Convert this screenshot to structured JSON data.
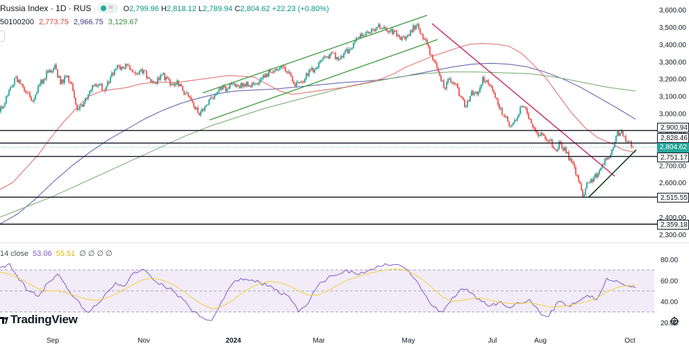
{
  "header": {
    "symbol": "Russia Index · 1D · RUS",
    "ohlc": {
      "open_label": "O",
      "open": "2,799.96",
      "high_label": "H",
      "high": "2,818.12",
      "low_label": "L",
      "low": "2,789.94",
      "close_label": "C",
      "close": "2,804.62",
      "change": "+22.23 (+0.80%)"
    },
    "ma_row": {
      "label": "50100200",
      "ma50": "2,773.75",
      "ma100": "2,966.75",
      "ma200": "3,129.67"
    }
  },
  "colors": {
    "up": "#26a69a",
    "down": "#ef5350",
    "ma50": "#e06666",
    "ma100": "#5b58a8",
    "ma200": "#6ea86a",
    "rsi": "#7e57c2",
    "rsi_ma": "#f4d03f",
    "channel_green": "#3d9a3d",
    "trend_red": "#c2185b",
    "ma50_text": "#d0463e",
    "ma100_text": "#3f3c8e",
    "ma200_text": "#3d8a3d"
  },
  "price_levels": [
    "2,900.94",
    "2,828.46",
    "2,804.62",
    "2,751.17",
    "2,515.55",
    "2,359.18"
  ],
  "rsi_header": {
    "label": "14 close",
    "rsi": "53.06",
    "rsi_ma": "55.51",
    "extra": "∅ ∅ ∅ ∅"
  },
  "branding": "TradingView",
  "chart_data": {
    "type": "line",
    "title": "Russia Index · 1D · RUS",
    "x_axis": {
      "tick_labels": [
        "Sep",
        "Nov",
        "2024",
        "Mar",
        "May",
        "Jul",
        "Aug",
        "Oct"
      ],
      "range": [
        "2023-08",
        "2024-10"
      ]
    },
    "y_axis_price": {
      "tick_labels": [
        "3,600.00",
        "3,500.00",
        "3,400.00",
        "3,300.00",
        "3,200.00",
        "3,100.00",
        "3,000.00",
        "2,900.00",
        "2,800.00",
        "2,700.00",
        "2,600.00",
        "2,500.00",
        "2,400.00",
        "2,300.00"
      ],
      "ylim": [
        2300,
        3600
      ]
    },
    "y_axis_rsi": {
      "tick_labels": [
        "80.00",
        "60.00",
        "40.00",
        "20.00"
      ],
      "ylim": [
        20,
        80
      ],
      "band": [
        30,
        70
      ],
      "mid": 50
    },
    "horizontal_levels": [
      2900.94,
      2828.46,
      2751.17,
      2515.55,
      2359.18
    ],
    "last_price": 2804.62,
    "price_series": {
      "name": "Russia Index",
      "x": [
        0,
        8,
        16,
        24,
        32,
        40,
        48,
        56,
        64,
        72,
        80,
        88,
        96,
        104,
        112,
        120,
        128,
        136,
        144,
        152,
        160,
        168,
        176,
        184,
        192,
        200,
        208,
        216,
        224,
        232,
        240,
        248,
        256,
        264,
        272,
        280,
        288,
        296,
        304,
        312,
        320,
        328,
        336,
        344,
        352,
        360,
        368,
        376,
        384,
        392,
        400,
        408,
        416,
        424,
        432,
        440,
        448,
        456,
        464,
        472,
        480,
        488,
        496,
        504,
        512,
        520,
        528,
        536,
        544,
        552,
        560,
        568,
        576,
        584,
        592,
        600,
        608,
        616,
        624,
        632,
        640,
        648,
        656,
        664,
        672,
        680,
        688,
        696,
        704,
        712,
        720,
        728,
        736,
        744,
        752,
        760,
        768,
        776,
        784,
        792,
        800,
        808,
        816,
        824,
        832,
        840,
        848,
        856,
        864,
        872,
        880,
        888,
        896,
        904,
        912
      ],
      "values": [
        3010,
        3060,
        3150,
        3210,
        3170,
        3120,
        3070,
        3160,
        3200,
        3250,
        3280,
        3170,
        3210,
        3170,
        3020,
        3040,
        3110,
        3160,
        3170,
        3130,
        3210,
        3260,
        3270,
        3280,
        3240,
        3230,
        3250,
        3200,
        3180,
        3220,
        3210,
        3170,
        3190,
        3130,
        3100,
        3040,
        2990,
        3040,
        3090,
        3110,
        3140,
        3140,
        3170,
        3160,
        3170,
        3160,
        3170,
        3200,
        3230,
        3240,
        3250,
        3270,
        3240,
        3170,
        3180,
        3200,
        3250,
        3260,
        3310,
        3330,
        3350,
        3310,
        3350,
        3370,
        3420,
        3460,
        3470,
        3490,
        3500,
        3490,
        3470,
        3480,
        3440,
        3430,
        3480,
        3510,
        3460,
        3400,
        3310,
        3240,
        3150,
        3200,
        3170,
        3100,
        3040,
        3130,
        3110,
        3210,
        3170,
        3120,
        3030,
        2980,
        2930,
        2960,
        3040,
        3000,
        2920,
        2870,
        2870,
        2840,
        2790,
        2830,
        2770,
        2720,
        2640,
        2520,
        2600,
        2630,
        2670,
        2740,
        2760,
        2870,
        2900,
        2840,
        2805
      ]
    },
    "series": [
      {
        "name": "50",
        "values": [
          2560,
          2600,
          2680,
          2760,
          2860,
          2950,
          3030,
          3100,
          3130,
          3140,
          3150,
          3170,
          3180,
          3180,
          3180,
          3190,
          3200,
          3210,
          3220,
          3215,
          3210,
          3170,
          3130,
          3110,
          3120,
          3130,
          3140,
          3150,
          3165,
          3180,
          3200,
          3230,
          3270,
          3300,
          3330,
          3355,
          3380,
          3400,
          3405,
          3400,
          3390,
          3350,
          3280,
          3200,
          3100,
          3000,
          2920,
          2860,
          2830,
          2790,
          2773.75
        ]
      },
      {
        "name": "100",
        "values": [
          2360,
          2420,
          2510,
          2610,
          2700,
          2780,
          2850,
          2910,
          2970,
          3020,
          3060,
          3090,
          3115,
          3130,
          3135,
          3140,
          3150,
          3160,
          3170,
          3180,
          3185,
          3195,
          3210,
          3230,
          3250,
          3270,
          3285,
          3290,
          3285,
          3270,
          3240,
          3200,
          3150,
          3090,
          3030,
          2966.75
        ]
      },
      {
        "name": "200",
        "values": [
          2400,
          2460,
          2520,
          2590,
          2660,
          2730,
          2800,
          2870,
          2930,
          2980,
          3030,
          3070,
          3110,
          3150,
          3180,
          3210,
          3230,
          3240,
          3240,
          3235,
          3230,
          3210,
          3180,
          3150,
          3129.67
        ]
      },
      {
        "name": "RSI",
        "values": [
          72,
          76,
          60,
          50,
          45,
          58,
          66,
          52,
          42,
          30,
          36,
          48,
          58,
          55,
          68,
          70,
          60,
          55,
          50,
          42,
          30,
          25,
          22,
          40,
          55,
          62,
          60,
          58,
          55,
          48,
          45,
          30,
          38,
          55,
          62,
          65,
          70,
          66,
          68,
          72,
          76,
          75,
          72,
          62,
          48,
          35,
          30,
          44,
          52,
          48,
          40,
          36,
          40,
          34,
          38,
          42,
          30,
          26,
          40,
          36,
          40,
          46,
          42,
          62,
          60,
          55,
          53.06
        ]
      },
      {
        "name": "RSI MA",
        "values": [
          68,
          66,
          62,
          57,
          52,
          50,
          50,
          48,
          45,
          42,
          41,
          43,
          47,
          52,
          57,
          61,
          62,
          60,
          56,
          50,
          43,
          37,
          33,
          35,
          40,
          47,
          53,
          57,
          59,
          58,
          55,
          50,
          46,
          46,
          50,
          55,
          60,
          63,
          66,
          68,
          70,
          71,
          70,
          66,
          60,
          52,
          44,
          40,
          41,
          43,
          43,
          41,
          39,
          38,
          38,
          39,
          37,
          35,
          35,
          36,
          38,
          40,
          43,
          49,
          53,
          55,
          55.51
        ]
      }
    ]
  }
}
